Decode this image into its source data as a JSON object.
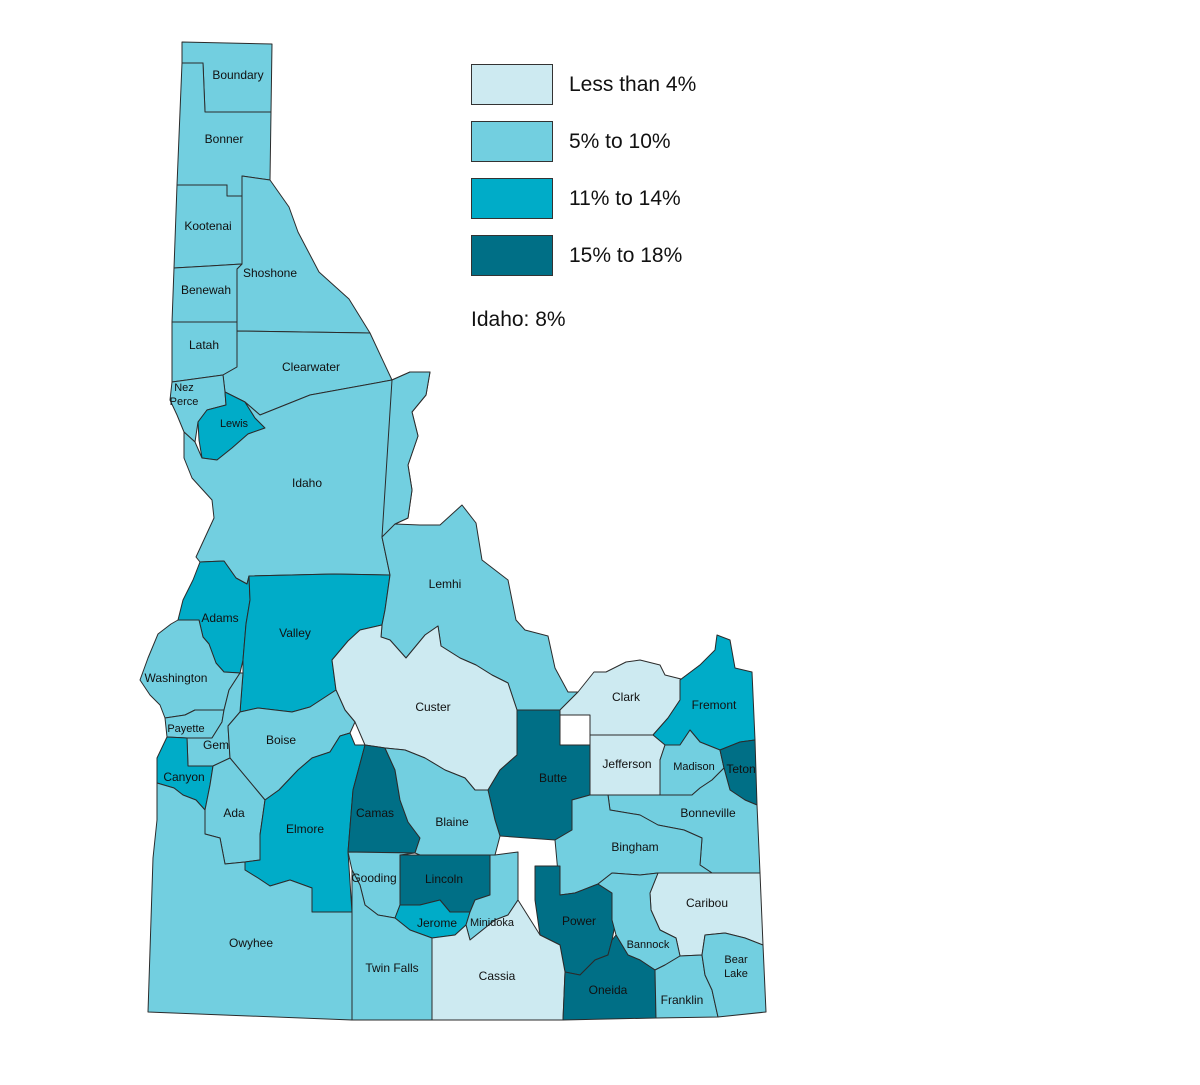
{
  "legend": [
    {
      "label": "Less than 4%",
      "color": "#cdeaf1"
    },
    {
      "label": "5% to 10%",
      "color": "#72cfe0"
    },
    {
      "label": "11% to 14%",
      "color": "#00acc8"
    },
    {
      "label": "15% to 18%",
      "color": "#006f86"
    }
  ],
  "state_note": "Idaho: 8%",
  "counties": [
    {
      "name": "Boundary",
      "label": "Boundary",
      "class": "5% to 10%"
    },
    {
      "name": "Bonner",
      "label": "Bonner",
      "class": "5% to 10%"
    },
    {
      "name": "Kootenai",
      "label": "Kootenai",
      "class": "5% to 10%"
    },
    {
      "name": "Shoshone",
      "label": "Shoshone",
      "class": "5% to 10%"
    },
    {
      "name": "Benewah",
      "label": "Benewah",
      "class": "5% to 10%"
    },
    {
      "name": "Latah",
      "label": "Latah",
      "class": "5% to 10%"
    },
    {
      "name": "Clearwater",
      "label": "Clearwater",
      "class": "5% to 10%"
    },
    {
      "name": "Nez Perce",
      "label": "Nez\nPerce",
      "class": "5% to 10%"
    },
    {
      "name": "Lewis",
      "label": "Lewis",
      "class": "11% to 14%"
    },
    {
      "name": "Idaho",
      "label": "Idaho",
      "class": "5% to 10%"
    },
    {
      "name": "Adams",
      "label": "Adams",
      "class": "11% to 14%"
    },
    {
      "name": "Valley",
      "label": "Valley",
      "class": "11% to 14%"
    },
    {
      "name": "Lemhi",
      "label": "Lemhi",
      "class": "5% to 10%"
    },
    {
      "name": "Washington",
      "label": "Washington",
      "class": "5% to 10%"
    },
    {
      "name": "Custer",
      "label": "Custer",
      "class": "Less than 4%"
    },
    {
      "name": "Payette",
      "label": "Payette",
      "class": "5% to 10%"
    },
    {
      "name": "Gem",
      "label": "Gem",
      "class": "5% to 10%"
    },
    {
      "name": "Boise",
      "label": "Boise",
      "class": "5% to 10%"
    },
    {
      "name": "Clark",
      "label": "Clark",
      "class": "Less than 4%"
    },
    {
      "name": "Fremont",
      "label": "Fremont",
      "class": "11% to 14%"
    },
    {
      "name": "Butte",
      "label": "Butte",
      "class": "15% to 18%"
    },
    {
      "name": "Jefferson",
      "label": "Jefferson",
      "class": "Less than 4%"
    },
    {
      "name": "Madison",
      "label": "Madison",
      "class": "5% to 10%"
    },
    {
      "name": "Teton",
      "label": "Teton",
      "class": "15% to 18%"
    },
    {
      "name": "Canyon",
      "label": "Canyon",
      "class": "11% to 14%"
    },
    {
      "name": "Ada",
      "label": "Ada",
      "class": "5% to 10%"
    },
    {
      "name": "Elmore",
      "label": "Elmore",
      "class": "11% to 14%"
    },
    {
      "name": "Camas",
      "label": "Camas",
      "class": "15% to 18%"
    },
    {
      "name": "Blaine",
      "label": "Blaine",
      "class": "5% to 10%"
    },
    {
      "name": "Bonneville",
      "label": "Bonneville",
      "class": "5% to 10%"
    },
    {
      "name": "Bingham",
      "label": "Bingham",
      "class": "5% to 10%"
    },
    {
      "name": "Gooding",
      "label": "Gooding",
      "class": "5% to 10%"
    },
    {
      "name": "Lincoln",
      "label": "Lincoln",
      "class": "15% to 18%"
    },
    {
      "name": "Jerome",
      "label": "Jerome",
      "class": "11% to 14%"
    },
    {
      "name": "Minidoka",
      "label": "Minidoka",
      "class": "5% to 10%"
    },
    {
      "name": "Power",
      "label": "Power",
      "class": "15% to 18%"
    },
    {
      "name": "Caribou",
      "label": "Caribou",
      "class": "Less than 4%"
    },
    {
      "name": "Bannock",
      "label": "Bannock",
      "class": "5% to 10%"
    },
    {
      "name": "Owyhee",
      "label": "Owyhee",
      "class": "5% to 10%"
    },
    {
      "name": "Twin Falls",
      "label": "Twin Falls",
      "class": "5% to 10%"
    },
    {
      "name": "Cassia",
      "label": "Cassia",
      "class": "Less than 4%"
    },
    {
      "name": "Oneida",
      "label": "Oneida",
      "class": "15% to 18%"
    },
    {
      "name": "Franklin",
      "label": "Franklin",
      "class": "5% to 10%"
    },
    {
      "name": "Bear Lake",
      "label": "Bear\nLake",
      "class": "5% to 10%"
    }
  ]
}
